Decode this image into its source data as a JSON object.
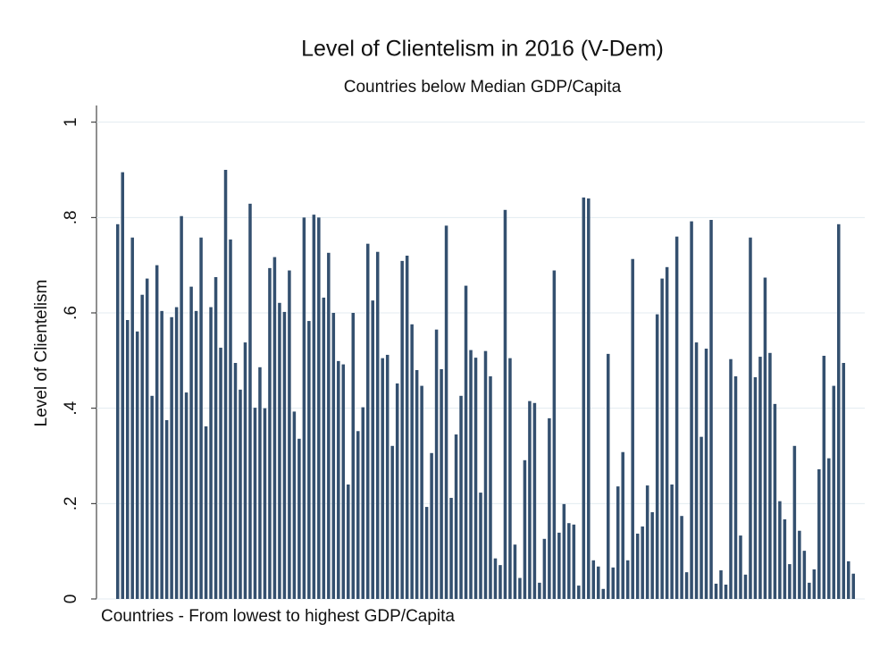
{
  "chart_data": {
    "type": "bar",
    "title": "Level of Clientelism in 2016 (V-Dem)",
    "subtitle": "Countries below Median GDP/Capita",
    "y_label": "Level of Clientelism",
    "x_label": "Countries - From lowest to highest GDP/Capita",
    "color": "#34506f",
    "grid": true,
    "ylim": [
      0,
      1.035
    ],
    "yticks": [
      0,
      {
        "value": 0.2,
        "label": ".2"
      },
      {
        "value": 0.4,
        "label": ".4"
      },
      {
        "value": 0.6,
        "label": ".6"
      },
      {
        "value": 0.8,
        "label": ".8"
      },
      1
    ],
    "values": [
      0.786,
      0.895,
      0.585,
      0.758,
      0.561,
      0.638,
      0.672,
      0.426,
      0.7,
      0.604,
      0.375,
      0.591,
      0.612,
      0.803,
      0.433,
      0.655,
      0.604,
      0.758,
      0.362,
      0.612,
      0.675,
      0.527,
      0.9,
      0.754,
      0.495,
      0.439,
      0.538,
      0.829,
      0.401,
      0.486,
      0.4,
      0.694,
      0.717,
      0.621,
      0.602,
      0.689,
      0.393,
      0.336,
      0.8,
      0.583,
      0.806,
      0.8,
      0.632,
      0.726,
      0.6,
      0.499,
      0.492,
      0.24,
      0.6,
      0.352,
      0.402,
      0.745,
      0.626,
      0.728,
      0.505,
      0.512,
      0.321,
      0.452,
      0.709,
      0.72,
      0.576,
      0.48,
      0.447,
      0.193,
      0.306,
      0.565,
      0.482,
      0.783,
      0.212,
      0.345,
      0.426,
      0.657,
      0.522,
      0.506,
      0.223,
      0.52,
      0.467,
      0.085,
      0.071,
      0.816,
      0.505,
      0.114,
      0.044,
      0.291,
      0.415,
      0.411,
      0.034,
      0.126,
      0.379,
      0.689,
      0.139,
      0.199,
      0.159,
      0.156,
      0.028,
      0.842,
      0.84,
      0.081,
      0.068,
      0.021,
      0.514,
      0.066,
      0.236,
      0.308,
      0.081,
      0.713,
      0.137,
      0.152,
      0.238,
      0.182,
      0.597,
      0.672,
      0.696,
      0.24,
      0.76,
      0.174,
      0.056,
      0.792,
      0.538,
      0.34,
      0.525,
      0.795,
      0.032,
      0.06,
      0.03,
      0.503,
      0.467,
      0.133,
      0.051,
      0.758,
      0.465,
      0.508,
      0.674,
      0.516,
      0.409,
      0.205,
      0.167,
      0.073,
      0.321,
      0.143,
      0.101,
      0.034,
      0.062,
      0.272,
      0.51,
      0.295,
      0.447,
      0.786,
      0.495,
      0.079,
      0.053
    ]
  }
}
